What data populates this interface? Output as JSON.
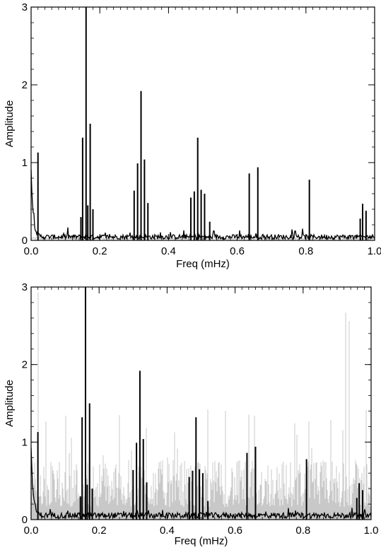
{
  "colors": {
    "foreground": "#000000",
    "background_series": "#c8c8c8"
  },
  "chart_data": [
    {
      "type": "line",
      "xlabel": "Freq (mHz)",
      "ylabel": "Amplitude",
      "xlim": [
        0.0,
        1.0
      ],
      "ylim": [
        0,
        3
      ],
      "grid": false,
      "xticks": [
        "0.0",
        "0.2",
        "0.4",
        "0.6",
        "0.8",
        "1.0"
      ],
      "yticks": [
        "0",
        "1",
        "2",
        "3"
      ],
      "series": [
        {
          "style": "spectrum-peaks",
          "color": "#000000",
          "noise_level": 0.05,
          "low_freq_rise": 0.85,
          "x": [
            0.02,
            0.145,
            0.15,
            0.16,
            0.165,
            0.172,
            0.18,
            0.3,
            0.31,
            0.32,
            0.33,
            0.34,
            0.465,
            0.475,
            0.485,
            0.495,
            0.505,
            0.52,
            0.635,
            0.66,
            0.81,
            0.958,
            0.965,
            0.975
          ],
          "y": [
            1.13,
            0.3,
            1.32,
            3.0,
            0.45,
            1.5,
            0.4,
            0.64,
            0.99,
            1.92,
            1.04,
            0.48,
            0.55,
            0.63,
            1.32,
            0.65,
            0.6,
            0.24,
            0.86,
            0.94,
            0.78,
            0.28,
            0.47,
            0.38
          ]
        },
        {
          "style": "noise-floor",
          "color": "#c8c8c8",
          "level": 0.03
        }
      ]
    },
    {
      "type": "line",
      "xlabel": "Freq (mHz)",
      "ylabel": "Amplitude",
      "xlim": [
        0.0,
        1.0
      ],
      "ylim": [
        0,
        3
      ],
      "grid": false,
      "xticks": [
        "0.0",
        "0.2",
        "0.4",
        "0.6",
        "0.8",
        "1.0"
      ],
      "yticks": [
        "0",
        "1",
        "2",
        "3"
      ],
      "series": [
        {
          "style": "spectrum-peaks",
          "color": "#000000",
          "noise_level": 0.06,
          "low_freq_rise": 0.85,
          "x": [
            0.02,
            0.145,
            0.15,
            0.16,
            0.165,
            0.172,
            0.18,
            0.3,
            0.31,
            0.32,
            0.33,
            0.34,
            0.465,
            0.475,
            0.485,
            0.495,
            0.505,
            0.52,
            0.635,
            0.66,
            0.81,
            0.958,
            0.965,
            0.975
          ],
          "y": [
            1.13,
            0.3,
            1.32,
            3.0,
            0.45,
            1.5,
            0.4,
            0.64,
            0.99,
            1.92,
            1.04,
            0.48,
            0.55,
            0.63,
            1.32,
            0.65,
            0.6,
            0.24,
            0.86,
            0.94,
            0.78,
            0.28,
            0.47,
            0.38
          ]
        },
        {
          "style": "noise-band",
          "color": "#c8c8c8",
          "typical_level": 0.55,
          "max_level": 3.0
        }
      ]
    }
  ]
}
